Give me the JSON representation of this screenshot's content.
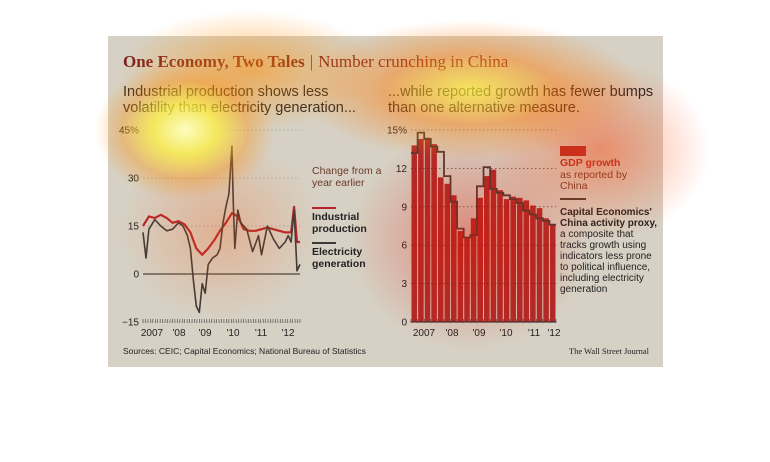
{
  "header": {
    "title": "One Economy, Two Tales",
    "separator": "|",
    "subtitle": "Number crunching in China"
  },
  "left_subtitle": "Industrial production shows less volatility than electricity generation...",
  "right_subtitle": "...while reported growth has fewer bumps than one alternative measure.",
  "legend": {
    "change_note": "Change from a year earlier",
    "industrial": "Industrial production",
    "electricity": "Electricity generation",
    "gdp_title": "GDP growth",
    "gdp_note": "as reported by China",
    "proxy_title": "Capital Economics' China activity proxy,",
    "proxy_note": "a composite that tracks growth using indicators less prone to political influence, including electricity generation"
  },
  "footer": {
    "source": "Sources: CEIC; Capital Economics; National Bureau of Statistics",
    "credit": "The Wall Street Journal"
  },
  "colors": {
    "industrial": "#b5242a",
    "electricity": "#3a3a3a",
    "gdp_bar": "#b02a28",
    "proxy": "#4a3a34",
    "panel": "#d6d1c4"
  },
  "chart_data": [
    {
      "type": "line",
      "x_tick_labels": [
        "2007",
        "'08",
        "'09",
        "'10",
        "'11",
        "'12"
      ],
      "y_tick_labels": [
        "45%",
        "30",
        "15",
        "0",
        "−15"
      ],
      "ylim": [
        -15,
        45
      ],
      "y_ticks": [
        45,
        30,
        15,
        0,
        -15
      ],
      "x_range": [
        2007.0,
        2012.3
      ],
      "series": [
        {
          "name": "Industrial production",
          "x": [
            2007.0,
            2007.2,
            2007.4,
            2007.6,
            2007.8,
            2008.0,
            2008.2,
            2008.4,
            2008.6,
            2008.8,
            2009.0,
            2009.2,
            2009.4,
            2009.6,
            2009.8,
            2010.0,
            2010.2,
            2010.4,
            2010.6,
            2010.8,
            2011.0,
            2011.2,
            2011.4,
            2011.6,
            2011.8,
            2012.0,
            2012.1,
            2012.2,
            2012.3
          ],
          "values": [
            15,
            18,
            17.5,
            18.5,
            17.5,
            16,
            16.5,
            15.5,
            13,
            8,
            6,
            8,
            10.5,
            13.5,
            16,
            19,
            18,
            14,
            13.5,
            13.5,
            14,
            14.5,
            14,
            13.5,
            13,
            13,
            21,
            10,
            10
          ]
        },
        {
          "name": "Electricity generation",
          "x": [
            2007.0,
            2007.1,
            2007.2,
            2007.4,
            2007.6,
            2007.8,
            2008.0,
            2008.2,
            2008.35,
            2008.5,
            2008.6,
            2008.7,
            2008.8,
            2008.9,
            2009.0,
            2009.1,
            2009.2,
            2009.35,
            2009.5,
            2009.6,
            2009.7,
            2009.8,
            2009.9,
            2010.0,
            2010.05,
            2010.1,
            2010.2,
            2010.3,
            2010.5,
            2010.7,
            2010.9,
            2011.0,
            2011.2,
            2011.4,
            2011.6,
            2011.8,
            2011.9,
            2012.0,
            2012.1,
            2012.2,
            2012.3
          ],
          "values": [
            13,
            5,
            14,
            17,
            15,
            13.5,
            14,
            16,
            15,
            12,
            8,
            -2,
            -10,
            -12,
            -3,
            -6,
            3,
            5,
            6,
            8,
            16,
            21,
            25,
            40,
            22,
            8,
            20,
            16,
            14,
            7,
            12,
            6,
            15,
            11,
            8,
            10,
            12,
            10,
            20,
            1,
            3
          ]
        }
      ]
    },
    {
      "type": "bar",
      "x_tick_labels": [
        "2007",
        "'08",
        "'09",
        "'10",
        "'11",
        "'12"
      ],
      "y_tick_labels": [
        "15%",
        "12",
        "9",
        "6",
        "3",
        "0"
      ],
      "ylim": [
        0,
        15
      ],
      "y_ticks": [
        15,
        12,
        9,
        6,
        3,
        0
      ],
      "series": [
        {
          "name": "GDP growth",
          "quarters": [
            "2007Q1",
            "2007Q2",
            "2007Q3",
            "2007Q4",
            "2008Q1",
            "2008Q2",
            "2008Q3",
            "2008Q4",
            "2009Q1",
            "2009Q2",
            "2009Q3",
            "2009Q4",
            "2010Q1",
            "2010Q2",
            "2010Q3",
            "2010Q4",
            "2011Q1",
            "2011Q2",
            "2011Q3",
            "2011Q4",
            "2012Q1",
            "2012Q2"
          ],
          "values": [
            13.8,
            14.3,
            14.4,
            13.9,
            11.3,
            10.8,
            9.9,
            7.1,
            6.6,
            8.1,
            9.7,
            11.4,
            11.9,
            10.3,
            9.6,
            9.8,
            9.7,
            9.5,
            9.1,
            8.9,
            8.1,
            7.6
          ]
        },
        {
          "name": "Capital Economics' China activity proxy",
          "quarters": [
            "2007Q1",
            "2007Q2",
            "2007Q3",
            "2007Q4",
            "2008Q1",
            "2008Q2",
            "2008Q3",
            "2008Q4",
            "2009Q1",
            "2009Q2",
            "2009Q3",
            "2009Q4",
            "2010Q1",
            "2010Q2",
            "2010Q3",
            "2010Q4",
            "2011Q1",
            "2011Q2",
            "2011Q3",
            "2011Q4",
            "2012Q1",
            "2012Q2"
          ],
          "values": [
            13.2,
            14.8,
            14.3,
            13.7,
            13.3,
            11.4,
            9.4,
            7.3,
            6.6,
            6.8,
            10.6,
            12.1,
            10.4,
            10.1,
            9.9,
            9.6,
            9.3,
            8.7,
            8.4,
            8.1,
            7.9,
            7.6
          ]
        }
      ]
    }
  ]
}
